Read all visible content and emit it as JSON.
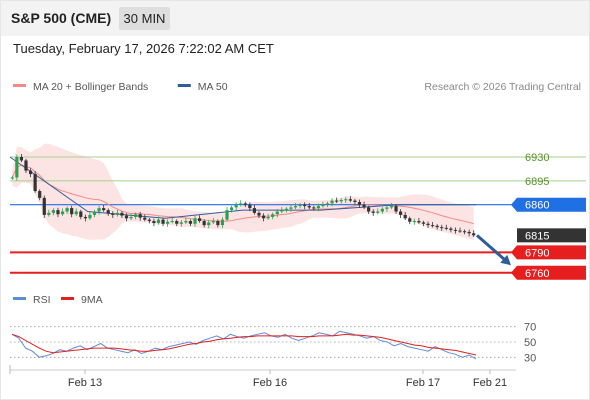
{
  "header": {
    "title": "S&P 500 (CME)",
    "timeframe": "30 MIN",
    "timestamp": "Tuesday, February 17, 2026 7:22:02 AM CET"
  },
  "colors": {
    "ma20": "#f28b82",
    "ma50": "#2f5d9c",
    "bollinger_fill": "#fde4e4",
    "resistance": "#a8d08d",
    "pivot": "#1f6fe5",
    "support": "#e61e1e",
    "last_price": "#333333",
    "candle_up": "#2e9e4f",
    "candle_down": "#333333",
    "rsi": "#5b8dd9",
    "rsi_ma": "#e61e1e",
    "arrow": "#2f5d9c"
  },
  "chart_data": [
    {
      "type": "candlestick",
      "legend": [
        {
          "name": "MA 20 + Bollinger Bands",
          "color": "#f28b82"
        },
        {
          "name": "MA 50",
          "color": "#2f5d9c"
        }
      ],
      "legend_position": "top-left",
      "annotation": "Research © 2026 Trading Central",
      "x_ticks": [
        "Feb 13",
        "Feb 16",
        "Feb 17",
        "Feb 21"
      ],
      "ylim": [
        6745,
        6955
      ],
      "grid": false,
      "levels": [
        {
          "label": "6930",
          "value": 6930,
          "kind": "resistance"
        },
        {
          "label": "6895",
          "value": 6895,
          "kind": "resistance"
        },
        {
          "label": "6860",
          "value": 6860,
          "kind": "pivot"
        },
        {
          "label": "6815",
          "value": 6815,
          "kind": "last"
        },
        {
          "label": "6790",
          "value": 6790,
          "kind": "support"
        },
        {
          "label": "6760",
          "value": 6760,
          "kind": "support"
        }
      ],
      "close_series": [
        6900,
        6930,
        6925,
        6910,
        6905,
        6880,
        6870,
        6845,
        6848,
        6852,
        6846,
        6850,
        6855,
        6846,
        6850,
        6842,
        6840,
        6845,
        6850,
        6855,
        6852,
        6847,
        6845,
        6848,
        6844,
        6840,
        6842,
        6846,
        6841,
        6838,
        6836,
        6833,
        6838,
        6832,
        6835,
        6836,
        6832,
        6834,
        6836,
        6832,
        6840,
        6836,
        6830,
        6834,
        6836,
        6830,
        6838,
        6852,
        6856,
        6860,
        6862,
        6860,
        6855,
        6848,
        6844,
        6840,
        6842,
        6846,
        6850,
        6852,
        6854,
        6856,
        6858,
        6860,
        6858,
        6856,
        6855,
        6858,
        6860,
        6862,
        6866,
        6865,
        6867,
        6868,
        6866,
        6864,
        6860,
        6856,
        6850,
        6848,
        6850,
        6854,
        6856,
        6858,
        6850,
        6845,
        6840,
        6835,
        6836,
        6834,
        6832,
        6830,
        6829,
        6827,
        6826,
        6825,
        6823,
        6822,
        6821,
        6820,
        6818,
        6815
      ],
      "ma50": [
        6930,
        6850,
        6840,
        6852,
        6852,
        6860,
        6860
      ],
      "projection": {
        "from": 6815,
        "to": 6775
      }
    },
    {
      "type": "line",
      "legend": [
        {
          "name": "RSI",
          "color": "#5b8dd9"
        },
        {
          "name": "9MA",
          "color": "#e61e1e"
        }
      ],
      "y_ticks": [
        70,
        50,
        30
      ],
      "ylim": [
        20,
        80
      ],
      "series": [
        {
          "name": "RSI",
          "values": [
            60,
            55,
            42,
            38,
            30,
            32,
            35,
            40,
            38,
            42,
            45,
            40,
            44,
            48,
            42,
            40,
            38,
            36,
            40,
            35,
            38,
            42,
            40,
            44,
            46,
            48,
            50,
            47,
            52,
            55,
            58,
            54,
            60,
            57,
            55,
            58,
            60,
            62,
            58,
            56,
            60,
            55,
            52,
            55,
            58,
            62,
            60,
            58,
            64,
            62,
            60,
            58,
            55,
            57,
            52,
            50,
            45,
            48,
            44,
            42,
            40,
            38,
            44,
            40,
            36,
            34,
            30,
            33,
            28
          ]
        },
        {
          "name": "9MA",
          "values": [
            60,
            57,
            52,
            47,
            42,
            38,
            36,
            37,
            38,
            39,
            40,
            41,
            42,
            42,
            42,
            42,
            41,
            40,
            39,
            38,
            38,
            39,
            40,
            41,
            43,
            45,
            47,
            48,
            50,
            51,
            53,
            54,
            55,
            56,
            57,
            57,
            58,
            58,
            58,
            58,
            58,
            58,
            57,
            57,
            57,
            58,
            58,
            58,
            59,
            60,
            59,
            59,
            58,
            57,
            56,
            54,
            52,
            50,
            48,
            46,
            45,
            43,
            42,
            41,
            40,
            39,
            37,
            35,
            33
          ]
        }
      ]
    }
  ]
}
